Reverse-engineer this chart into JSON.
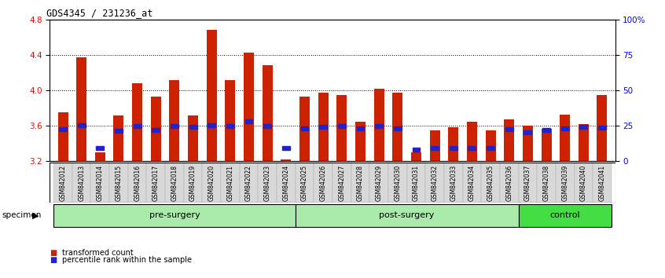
{
  "title": "GDS4345 / 231236_at",
  "samples": [
    "GSM842012",
    "GSM842013",
    "GSM842014",
    "GSM842015",
    "GSM842016",
    "GSM842017",
    "GSM842018",
    "GSM842019",
    "GSM842020",
    "GSM842021",
    "GSM842022",
    "GSM842023",
    "GSM842024",
    "GSM842025",
    "GSM842026",
    "GSM842027",
    "GSM842028",
    "GSM842029",
    "GSM842030",
    "GSM842031",
    "GSM842032",
    "GSM842033",
    "GSM842034",
    "GSM842035",
    "GSM842036",
    "GSM842037",
    "GSM842038",
    "GSM842039",
    "GSM842040",
    "GSM842041"
  ],
  "red_values": [
    3.75,
    4.37,
    3.3,
    3.72,
    4.08,
    3.93,
    4.12,
    3.72,
    4.68,
    4.12,
    4.43,
    4.28,
    3.22,
    3.93,
    3.97,
    3.95,
    3.65,
    4.02,
    3.97,
    3.3,
    3.55,
    3.58,
    3.65,
    3.55,
    3.67,
    3.6,
    3.57,
    3.73,
    3.62,
    3.95
  ],
  "blue_values": [
    3.56,
    3.61,
    3.35,
    3.54,
    3.6,
    3.55,
    3.6,
    3.59,
    3.61,
    3.6,
    3.65,
    3.6,
    3.35,
    3.57,
    3.59,
    3.6,
    3.57,
    3.6,
    3.57,
    3.33,
    3.35,
    3.35,
    3.35,
    3.35,
    3.56,
    3.53,
    3.55,
    3.57,
    3.59,
    3.58
  ],
  "groups": [
    {
      "label": "pre-surgery",
      "start": 0,
      "end": 13
    },
    {
      "label": "post-surgery",
      "start": 13,
      "end": 25
    },
    {
      "label": "control",
      "start": 25,
      "end": 30
    }
  ],
  "group_colors": [
    "#aaeaaa",
    "#aaeaaa",
    "#44dd44"
  ],
  "ylim_left": [
    3.2,
    4.8
  ],
  "yticks_left": [
    3.2,
    3.6,
    4.0,
    4.4,
    4.8
  ],
  "yticks_right": [
    0,
    25,
    50,
    75,
    100
  ],
  "ytick_labels_right": [
    "0",
    "25",
    "50",
    "75",
    "100%"
  ],
  "bar_color": "#cc2200",
  "dot_color": "#2222cc",
  "bar_width": 0.55,
  "legend_items": [
    {
      "label": "transformed count",
      "color": "#cc2200"
    },
    {
      "label": "percentile rank within the sample",
      "color": "#2222cc"
    }
  ],
  "specimen_label": "specimen"
}
